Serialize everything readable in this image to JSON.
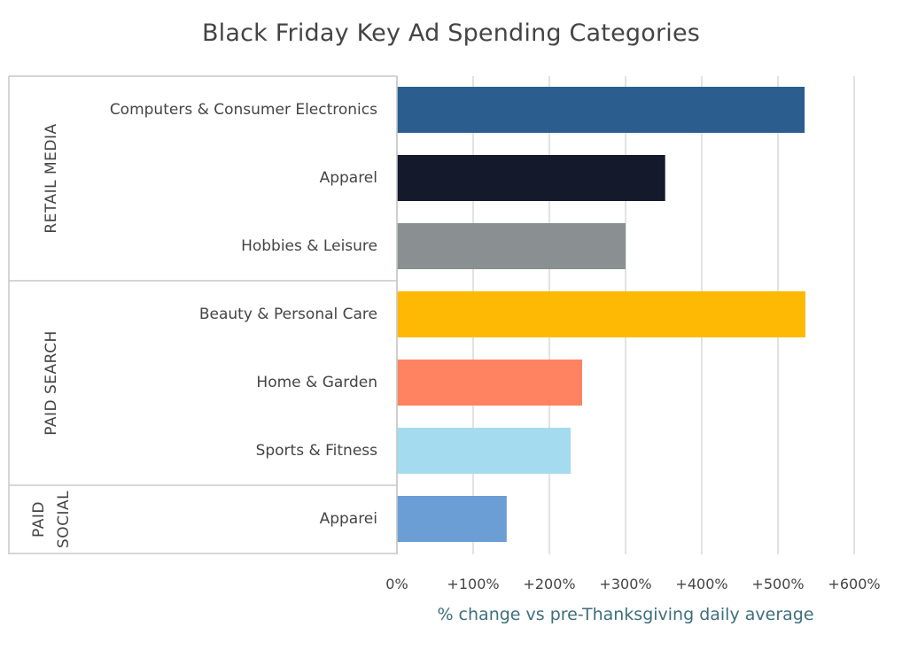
{
  "chart_data": {
    "type": "bar",
    "orientation": "horizontal",
    "title": "Black Friday Key Ad Spending Categories",
    "xlabel": "% change vs pre-Thanksgiving daily average",
    "ylabel": "",
    "xlim": [
      0,
      600
    ],
    "x_ticks": [
      0,
      100,
      200,
      300,
      400,
      500,
      600
    ],
    "x_tick_labels": [
      "0%",
      "+100%",
      "+200%",
      "+300%",
      "+400%",
      "+500%",
      "+600%"
    ],
    "grid": "vertical",
    "legend": "none",
    "groups": [
      {
        "name": "RETAIL MEDIA",
        "lines": [
          "RETAIL MEDIA"
        ],
        "size": 3
      },
      {
        "name": "PAID SEARCH",
        "lines": [
          "PAID SEARCH"
        ],
        "size": 3
      },
      {
        "name": "PAID SOCIAL",
        "lines": [
          "PAID",
          "SOCIAL"
        ],
        "size": 1
      }
    ],
    "categories": [
      "Computers & Consumer Electronics",
      "Apparel",
      "Hobbies & Leisure",
      "Beauty & Personal Care",
      "Home & Garden",
      "Sports & Fitness",
      "Apparei"
    ],
    "values": [
      535,
      352,
      300,
      536,
      243,
      228,
      144
    ],
    "colors": [
      "#2b5d8f",
      "#141a2b",
      "#8a9091",
      "#fdb903",
      "#ff8361",
      "#a5dbee",
      "#6a9ed5"
    ]
  }
}
